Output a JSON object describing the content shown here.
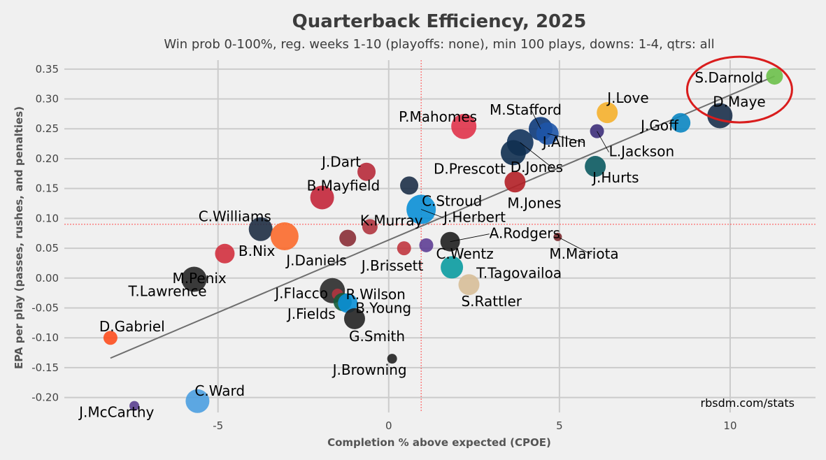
{
  "chart_data": {
    "type": "scatter",
    "title": "Quarterback Efficiency, 2025",
    "subtitle": "Win prob 0-100%, reg. weeks 1-10 (playoffs: none), min 100 plays, downs: 1-4, qtrs: all",
    "xlabel": "Completion % above expected (CPOE)",
    "ylabel": "EPA per play (passes, rushes, and penalties)",
    "xlim": [
      -9.5,
      12.5
    ],
    "ylim": [
      -0.225,
      0.365
    ],
    "xticks": [
      -5,
      0,
      5,
      10
    ],
    "xtick_labels": [
      "-5",
      "0",
      "5",
      "10"
    ],
    "yticks": [
      -0.2,
      -0.15,
      -0.1,
      -0.05,
      0.0,
      0.05,
      0.1,
      0.15,
      0.2,
      0.25,
      0.3,
      0.35
    ],
    "ytick_labels": [
      "-0.20",
      "-0.15",
      "-0.10",
      "-0.05",
      "0.00",
      "0.05",
      "0.10",
      "0.15",
      "0.20",
      "0.25",
      "0.30",
      "0.35"
    ],
    "mean_x": 0.95,
    "mean_y": 0.09,
    "trendline": {
      "x": [
        -8.15,
        11.3
      ],
      "y": [
        -0.134,
        0.338
      ]
    },
    "credit": "rbsdm.com/stats",
    "highlight": "S.Darnold",
    "grid": true,
    "points": [
      {
        "name": "S.Darnold",
        "x": 11.3,
        "y": 0.338,
        "size": 12,
        "color": "#6cc04a"
      },
      {
        "name": "D.Maye",
        "x": 9.7,
        "y": 0.272,
        "size": 18,
        "color": "#1a2f4a"
      },
      {
        "name": "J.Love",
        "x": 6.4,
        "y": 0.277,
        "size": 15,
        "color": "#f5b02c"
      },
      {
        "name": "J.Goff",
        "x": 8.55,
        "y": 0.26,
        "size": 14,
        "color": "#0b86c2"
      },
      {
        "name": "L.Jackson",
        "x": 6.1,
        "y": 0.246,
        "size": 10,
        "color": "#3d2f7a"
      },
      {
        "name": "M.Stafford",
        "x": 4.45,
        "y": 0.25,
        "size": 17,
        "color": "#0d3a7a"
      },
      {
        "name": "J.Allen",
        "x": 4.65,
        "y": 0.242,
        "size": 16,
        "color": "#1e55a8"
      },
      {
        "name": "D.Jones",
        "x": 3.85,
        "y": 0.227,
        "size": 19,
        "color": "#12335c"
      },
      {
        "name": "D.Prescott",
        "x": 3.65,
        "y": 0.21,
        "size": 18,
        "color": "#0f2f50"
      },
      {
        "name": "J.Hurts",
        "x": 6.05,
        "y": 0.187,
        "size": 15,
        "color": "#0b5a60"
      },
      {
        "name": "M.Jones",
        "x": 3.7,
        "y": 0.161,
        "size": 15,
        "color": "#b21f26"
      },
      {
        "name": "P.Mahomes",
        "x": 2.2,
        "y": 0.254,
        "size": 18,
        "color": "#e0334a"
      },
      {
        "name": "J.Dart",
        "x": -0.65,
        "y": 0.178,
        "size": 13,
        "color": "#b72a3a"
      },
      {
        "name": "C.Stroud",
        "x": 0.6,
        "y": 0.155,
        "size": 13,
        "color": "#1d3048"
      },
      {
        "name": "J.Herbert",
        "x": 0.95,
        "y": 0.115,
        "size": 21,
        "color": "#0a8fd6"
      },
      {
        "name": "B.Mayfield",
        "x": -1.95,
        "y": 0.135,
        "size": 17,
        "color": "#c3263a"
      },
      {
        "name": "K.Murray",
        "x": -0.55,
        "y": 0.086,
        "size": 11,
        "color": "#b0353f"
      },
      {
        "name": "C.Williams",
        "x": -3.75,
        "y": 0.082,
        "size": 17,
        "color": "#1e2d42"
      },
      {
        "name": "B.Nix",
        "x": -3.05,
        "y": 0.07,
        "size": 20,
        "color": "#fb6a2c"
      },
      {
        "name": "J.Daniels",
        "x": -1.2,
        "y": 0.067,
        "size": 12,
        "color": "#8a2e36"
      },
      {
        "name": "A.Rodgers",
        "x": 1.8,
        "y": 0.061,
        "size": 14,
        "color": "#1f1f1f"
      },
      {
        "name": "M.Mariota",
        "x": 4.95,
        "y": 0.069,
        "size": 6,
        "color": "#7a2a2f"
      },
      {
        "name": "C.Wentz",
        "x": 1.1,
        "y": 0.055,
        "size": 10,
        "color": "#5e3e95"
      },
      {
        "name": "J.Brissett",
        "x": 0.45,
        "y": 0.05,
        "size": 10,
        "color": "#c0363f"
      },
      {
        "name": "M.Penix",
        "x": -4.8,
        "y": 0.041,
        "size": 14,
        "color": "#d1303e"
      },
      {
        "name": "T.Tagovailoa",
        "x": 1.85,
        "y": 0.018,
        "size": 16,
        "color": "#0a9ba0"
      },
      {
        "name": "T.Lawrence",
        "x": -5.7,
        "y": -0.002,
        "size": 18,
        "color": "#262626"
      },
      {
        "name": "S.Rattler",
        "x": 2.35,
        "y": -0.011,
        "size": 15,
        "color": "#d7be98"
      },
      {
        "name": "J.Flacco",
        "x": -1.65,
        "y": -0.021,
        "size": 18,
        "color": "#2b2b2b"
      },
      {
        "name": "R.Wilson",
        "x": -1.5,
        "y": -0.027,
        "size": 8,
        "color": "#b0353f"
      },
      {
        "name": "J.Fields",
        "x": -1.35,
        "y": -0.04,
        "size": 13,
        "color": "#145b3a"
      },
      {
        "name": "B.Young",
        "x": -1.2,
        "y": -0.042,
        "size": 14,
        "color": "#0a8fd6"
      },
      {
        "name": "G.Smith",
        "x": -1.0,
        "y": -0.068,
        "size": 15,
        "color": "#222222"
      },
      {
        "name": "J.Browning",
        "x": 0.1,
        "y": -0.135,
        "size": 7,
        "color": "#222222"
      },
      {
        "name": "D.Gabriel",
        "x": -8.15,
        "y": -0.1,
        "size": 10,
        "color": "#fd4e1e"
      },
      {
        "name": "C.Ward",
        "x": -5.6,
        "y": -0.206,
        "size": 17,
        "color": "#4b9ee0"
      },
      {
        "name": "J.McCarthy",
        "x": -7.45,
        "y": -0.214,
        "size": 7,
        "color": "#5a3f8f"
      }
    ]
  }
}
